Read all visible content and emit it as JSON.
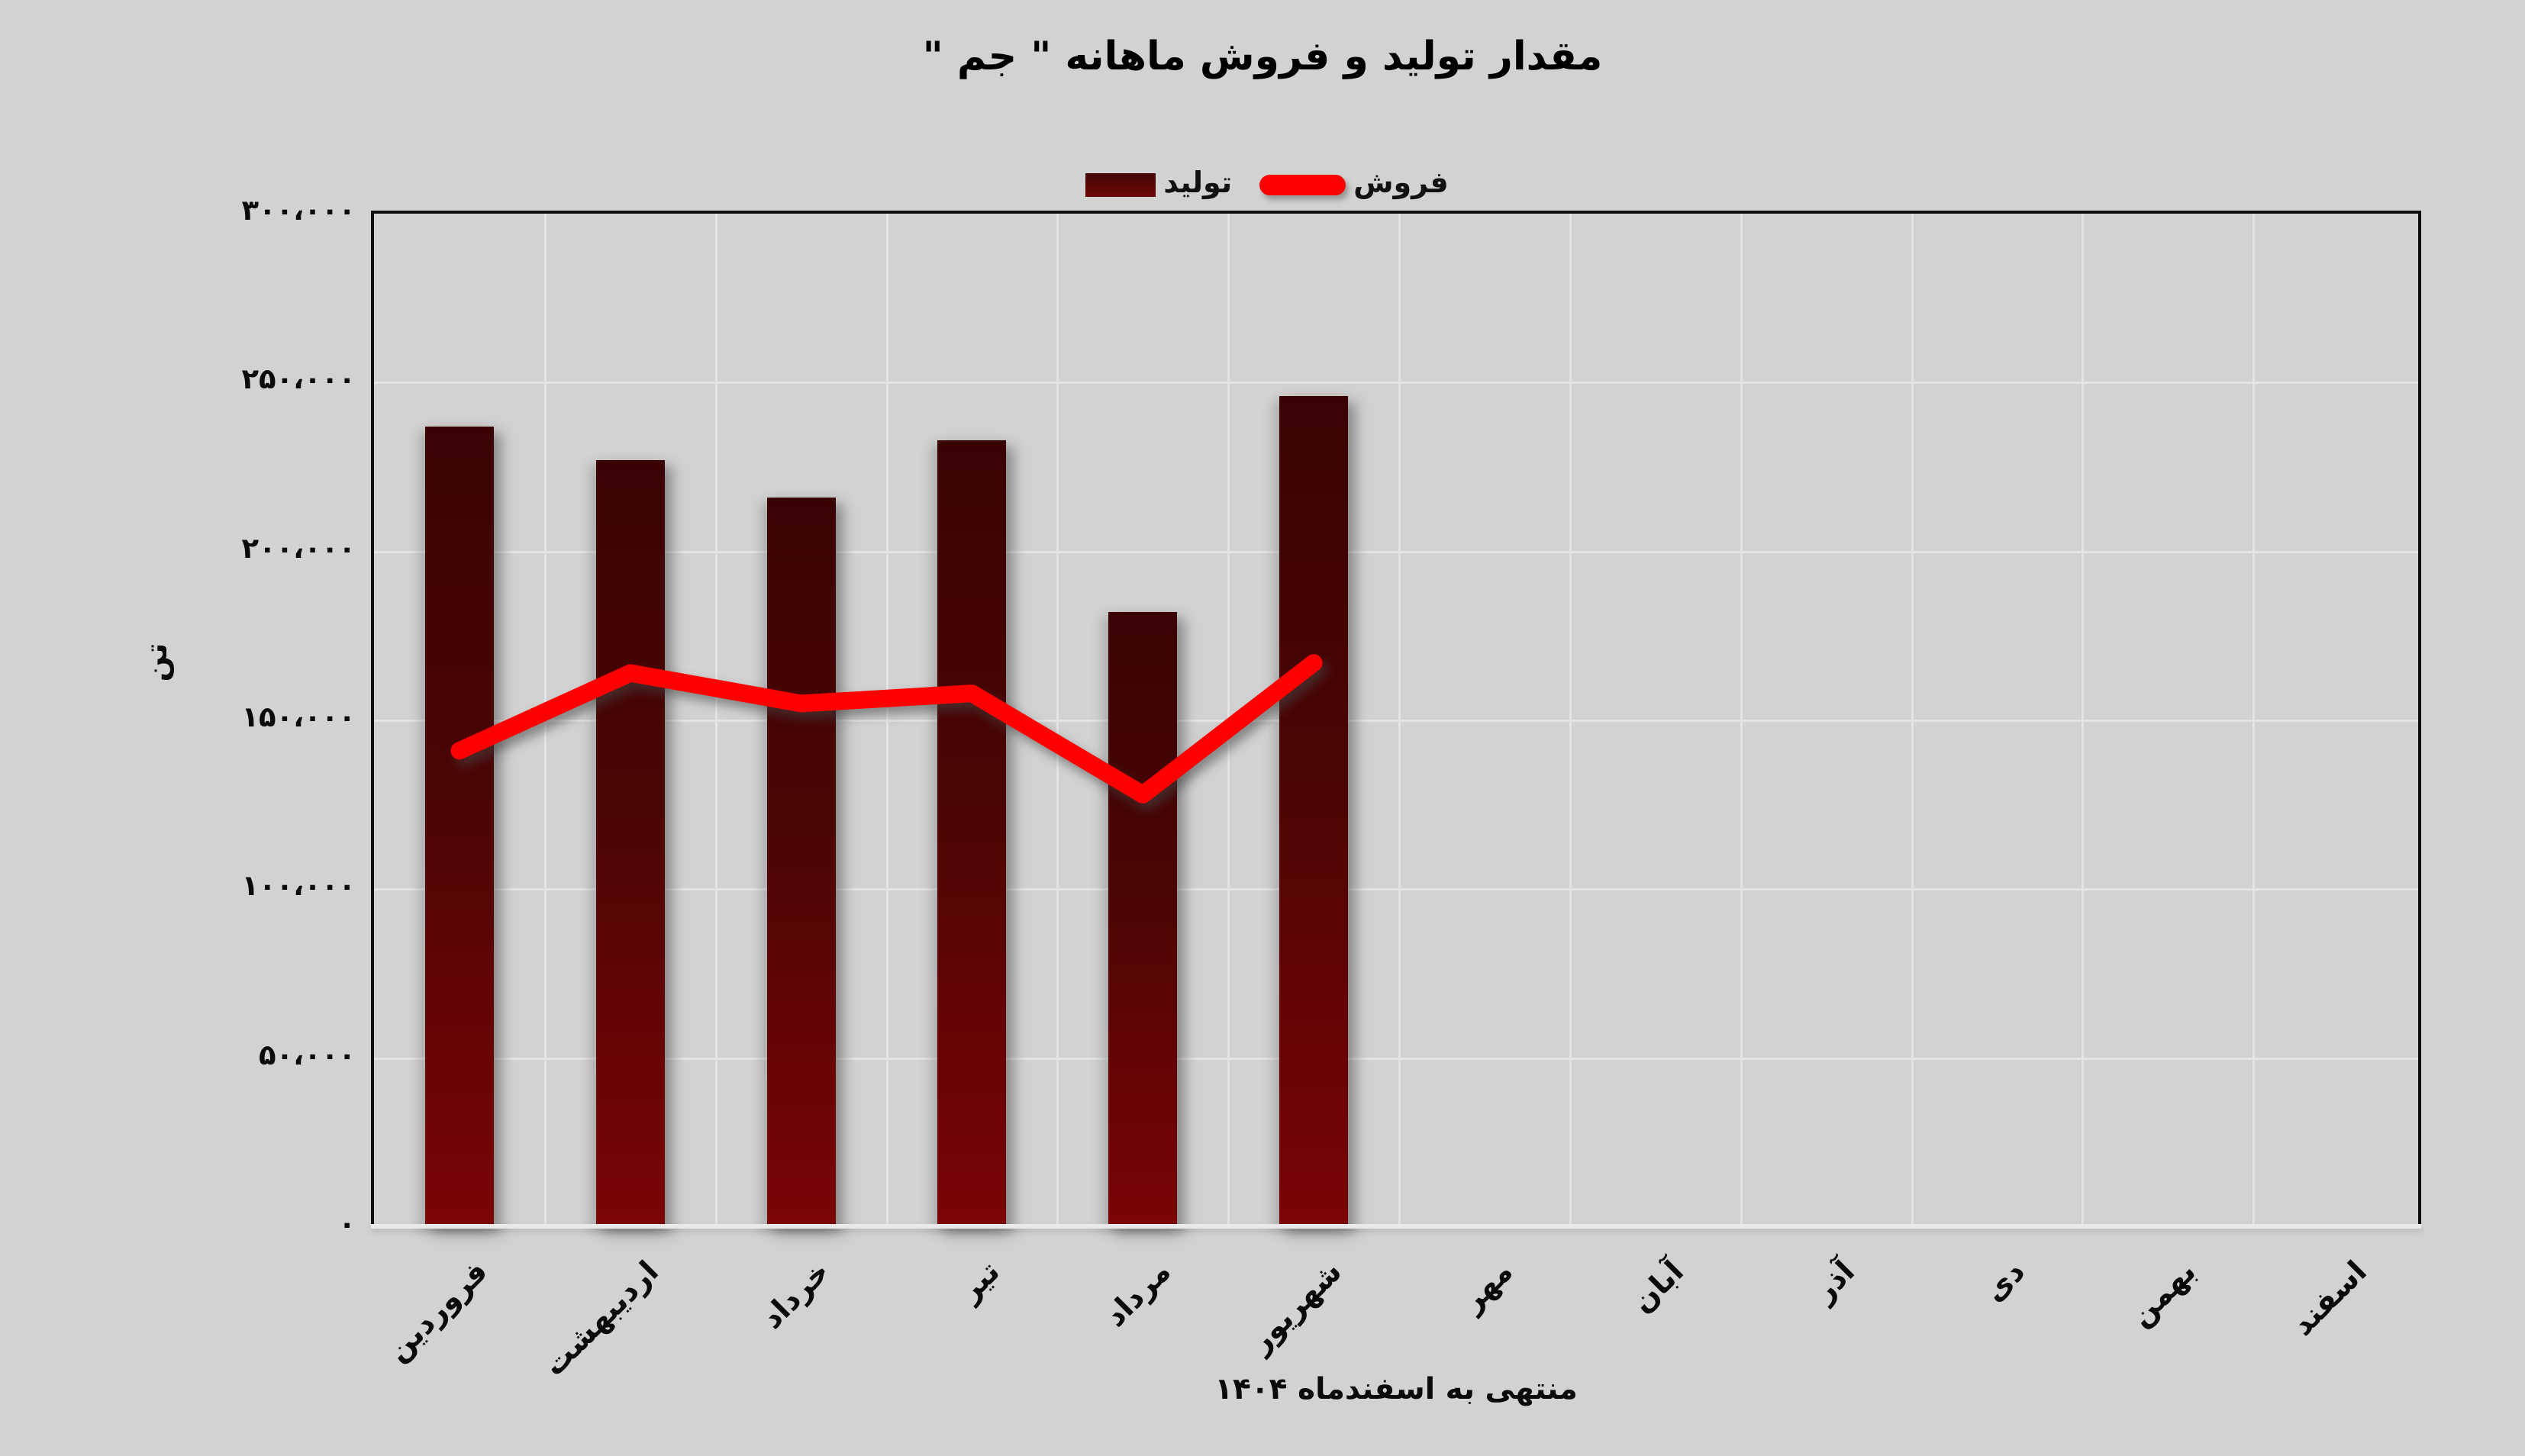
{
  "page": {
    "background": "#d2d2d2",
    "gridline_color": "#e4e4e4",
    "frame_color": "#0e0e0e"
  },
  "chart_data": {
    "type": "bar",
    "combo_line_overlay": true,
    "title": "مقدار تولید و فروش ماهانه \" جم \"",
    "xlabel": "منتهی به اسفندماه ۱۴۰۴",
    "ylabel": "تن",
    "ylim": [
      0,
      300000
    ],
    "ytick_step": 50000,
    "ytick_labels": [
      "۰",
      "۵۰،۰۰۰",
      "۱۰۰،۰۰۰",
      "۱۵۰،۰۰۰",
      "۲۰۰،۰۰۰",
      "۲۵۰،۰۰۰",
      "۳۰۰،۰۰۰"
    ],
    "grid": true,
    "legend_position": "top-center",
    "categories": [
      "فروردین",
      "اردیبهشت",
      "خرداد",
      "تیر",
      "مرداد",
      "شهریور",
      "مهر",
      "آبان",
      "آذر",
      "دی",
      "بهمن",
      "اسفند"
    ],
    "series": [
      {
        "name": "تولید",
        "type": "bar",
        "color_top": "#3a0303",
        "color_bottom": "#7b0406",
        "values": [
          237000,
          227000,
          216000,
          233000,
          182000,
          246000,
          null,
          null,
          null,
          null,
          null,
          null
        ]
      },
      {
        "name": "فروش",
        "type": "line",
        "color": "#fe0000",
        "values": [
          141000,
          164000,
          155000,
          158000,
          128000,
          167000,
          null,
          null,
          null,
          null,
          null,
          null
        ]
      }
    ]
  }
}
